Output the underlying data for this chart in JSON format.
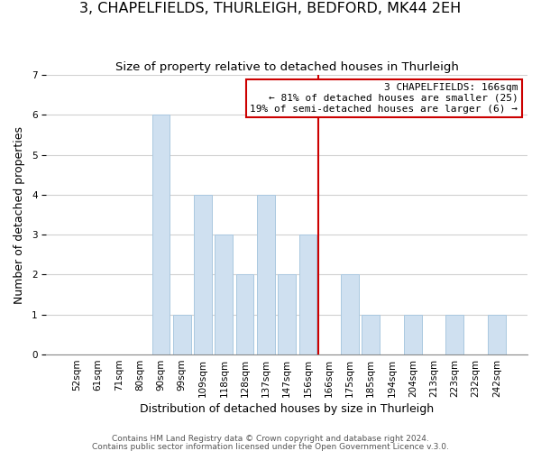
{
  "title": "3, CHAPELFIELDS, THURLEIGH, BEDFORD, MK44 2EH",
  "subtitle": "Size of property relative to detached houses in Thurleigh",
  "xlabel": "Distribution of detached houses by size in Thurleigh",
  "ylabel": "Number of detached properties",
  "footnote1": "Contains HM Land Registry data © Crown copyright and database right 2024.",
  "footnote2": "Contains public sector information licensed under the Open Government Licence v.3.0.",
  "bin_labels": [
    "52sqm",
    "61sqm",
    "71sqm",
    "80sqm",
    "90sqm",
    "99sqm",
    "109sqm",
    "118sqm",
    "128sqm",
    "137sqm",
    "147sqm",
    "156sqm",
    "166sqm",
    "175sqm",
    "185sqm",
    "194sqm",
    "204sqm",
    "213sqm",
    "223sqm",
    "232sqm",
    "242sqm"
  ],
  "bar_heights": [
    0,
    0,
    0,
    0,
    6,
    1,
    4,
    3,
    2,
    4,
    2,
    3,
    0,
    2,
    1,
    0,
    1,
    0,
    1,
    0,
    1
  ],
  "bar_color": "#cfe0f0",
  "bar_edge_color": "#aac8e0",
  "marker_idx": 12,
  "marker_line_color": "#cc0000",
  "annotation_line1": "3 CHAPELFIELDS: 166sqm",
  "annotation_line2": "← 81% of detached houses are smaller (25)",
  "annotation_line3": "19% of semi-detached houses are larger (6) →",
  "annotation_box_edge_color": "#cc0000",
  "ylim": [
    0,
    7
  ],
  "yticks": [
    0,
    1,
    2,
    3,
    4,
    5,
    6,
    7
  ],
  "grid_color": "#d0d0d0",
  "background_color": "#ffffff",
  "title_fontsize": 11.5,
  "subtitle_fontsize": 9.5,
  "axis_label_fontsize": 9,
  "tick_fontsize": 7.5,
  "footnote_fontsize": 6.5
}
